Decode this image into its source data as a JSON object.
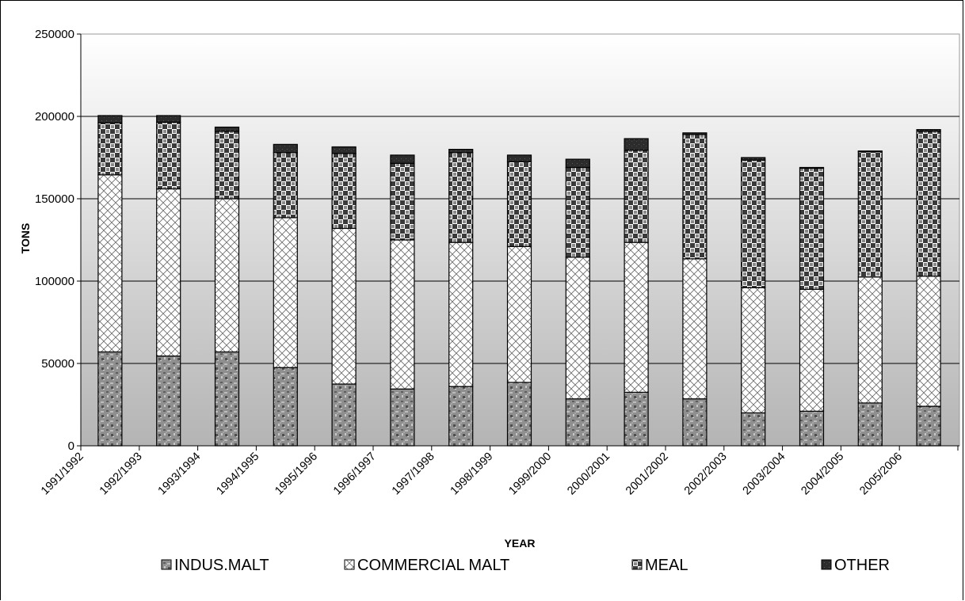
{
  "chart_data": {
    "type": "bar",
    "stacked": true,
    "categories": [
      "1991/1992",
      "1992/1993",
      "1993/1994",
      "1994/1995",
      "1995/1996",
      "1996/1997",
      "1997/1998",
      "1998/1999",
      "1999/2000",
      "2000/2001",
      "2001/2002",
      "2002/2003",
      "2003/2004",
      "2004/2005",
      "2005/2006"
    ],
    "series": [
      {
        "name": "INDUS.MALT",
        "values": [
          57000,
          54500,
          57000,
          47500,
          37500,
          34500,
          36000,
          38500,
          28500,
          32500,
          28500,
          20000,
          21000,
          26000,
          24000
        ],
        "pattern": "stone"
      },
      {
        "name": "COMMERCIAL MALT",
        "values": [
          107500,
          101500,
          93000,
          91000,
          94500,
          90500,
          87500,
          82500,
          86000,
          91000,
          85000,
          76000,
          74000,
          76500,
          79000
        ],
        "pattern": "crosshatch"
      },
      {
        "name": "MEAL",
        "values": [
          31500,
          40500,
          41000,
          39500,
          45500,
          46500,
          54500,
          51500,
          54500,
          56000,
          75500,
          77500,
          73500,
          76000,
          88000
        ],
        "pattern": "checker"
      },
      {
        "name": "OTHER",
        "values": [
          4500,
          4000,
          2500,
          5000,
          4000,
          5000,
          2000,
          4000,
          5000,
          7000,
          1000,
          1500,
          500,
          500,
          1000
        ],
        "pattern": "solid"
      }
    ],
    "xlabel": "YEAR",
    "ylabel": "TONS",
    "ylim": [
      0,
      250000
    ],
    "yticks": [
      0,
      50000,
      100000,
      150000,
      200000,
      250000
    ],
    "grid": true,
    "legend_position": "bottom",
    "colors": {
      "gradient_top": "#ffffff",
      "gradient_bottom": "#b4b4b4",
      "frame": "#000000"
    }
  }
}
